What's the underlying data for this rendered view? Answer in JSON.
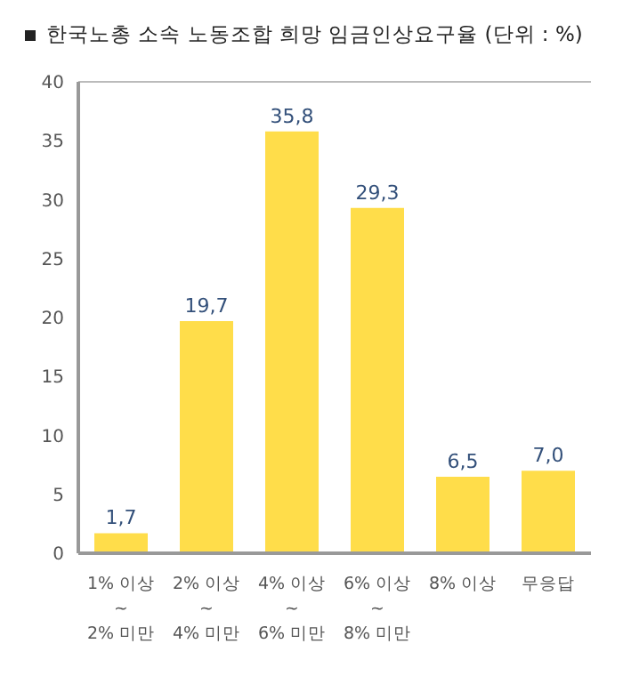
{
  "chart_data": {
    "type": "bar",
    "title": "한국노총 소속 노동조합 희망 임금인상요구율 (단위 : %)",
    "categories": [
      "1% 이상\n~\n2% 미만",
      "2% 이상\n~\n4% 미만",
      "4% 이상\n~\n6% 미만",
      "6% 이상\n~\n8% 미만",
      "8% 이상",
      "무응답"
    ],
    "values": [
      1.7,
      19.7,
      35.8,
      29.3,
      6.5,
      7.0
    ],
    "value_labels": [
      "1,7",
      "19,7",
      "35,8",
      "29,3",
      "6,5",
      "7,0"
    ],
    "color": "#ffdd4a",
    "ylim": [
      0,
      40
    ],
    "yticks": [
      0,
      5,
      10,
      15,
      20,
      25,
      30,
      35,
      40
    ]
  }
}
